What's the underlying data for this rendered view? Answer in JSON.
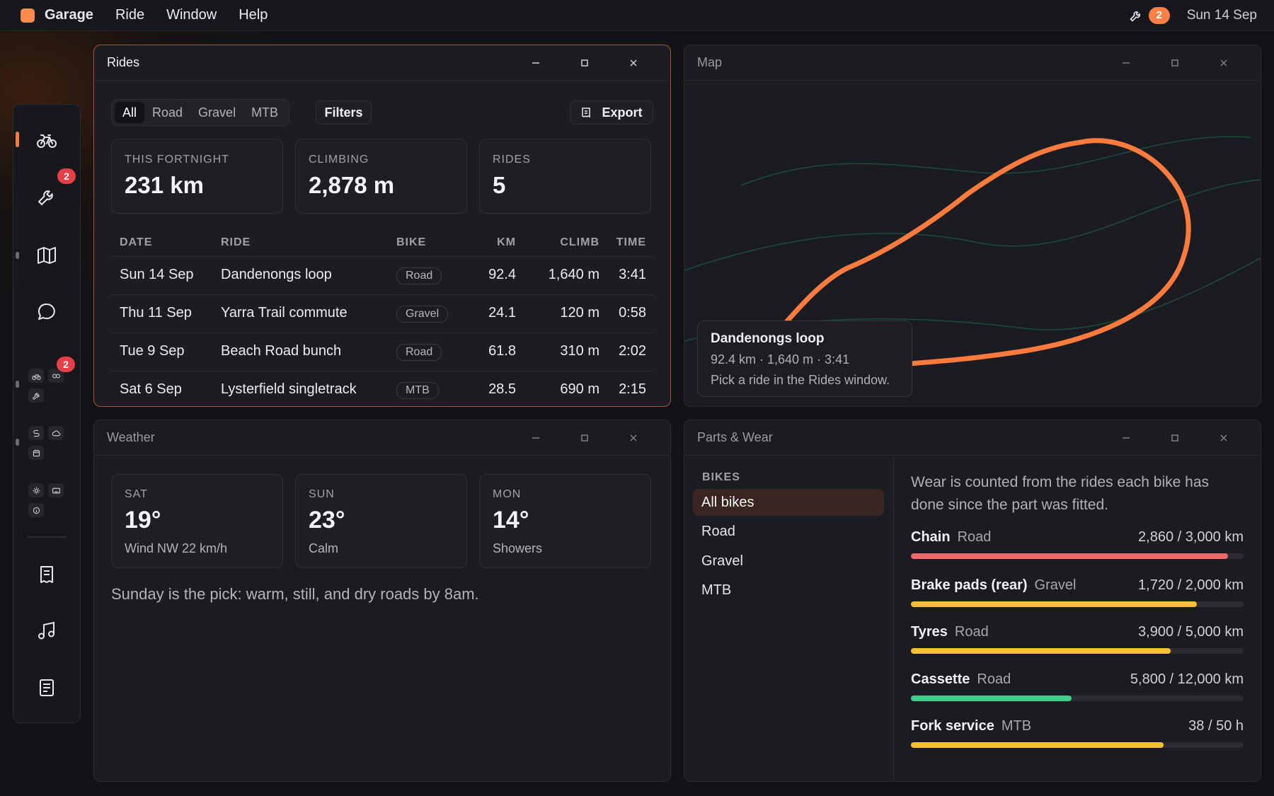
{
  "menubar": {
    "app_name": "Garage",
    "menus": [
      "Ride",
      "Window",
      "Help"
    ],
    "notifications": "2",
    "date": "Sun 14 Sep"
  },
  "dock": {
    "items": [
      {
        "name": "bike-icon",
        "active": true
      },
      {
        "name": "wrench-icon",
        "badge": "2"
      },
      {
        "name": "map-icon"
      },
      {
        "name": "chat-icon"
      },
      {
        "name": "group-bike-wrench",
        "badge": "2"
      },
      {
        "name": "group-route-weather"
      },
      {
        "name": "group-settings"
      },
      {
        "name": "receipt-icon"
      },
      {
        "name": "music-icon"
      },
      {
        "name": "notes-icon"
      }
    ]
  },
  "rides": {
    "title": "Rides",
    "filters": [
      "All",
      "Road",
      "Gravel",
      "MTB"
    ],
    "active_filter": "All",
    "filters_button": "Filters",
    "export_button": "Export",
    "stats": [
      {
        "label": "THIS FORTNIGHT",
        "value": "231 km"
      },
      {
        "label": "CLIMBING",
        "value": "2,878 m"
      },
      {
        "label": "RIDES",
        "value": "5"
      }
    ],
    "columns": [
      "DATE",
      "RIDE",
      "BIKE",
      "KM",
      "CLIMB",
      "TIME"
    ],
    "rows": [
      {
        "date": "Sun 14 Sep",
        "ride": "Dandenongs loop",
        "bike": "Road",
        "km": "92.4",
        "climb": "1,640 m",
        "time": "3:41"
      },
      {
        "date": "Thu 11 Sep",
        "ride": "Yarra Trail commute",
        "bike": "Gravel",
        "km": "24.1",
        "climb": "120 m",
        "time": "0:58"
      },
      {
        "date": "Tue 9 Sep",
        "ride": "Beach Road bunch",
        "bike": "Road",
        "km": "61.8",
        "climb": "310 m",
        "time": "2:02"
      },
      {
        "date": "Sat 6 Sep",
        "ride": "Lysterfield singletrack",
        "bike": "MTB",
        "km": "28.5",
        "climb": "690 m",
        "time": "2:15"
      }
    ]
  },
  "map": {
    "title": "Map",
    "route_color": "#ff7a3d",
    "info_title": "Dandenongs loop",
    "info_stats": "92.4 km · 1,640 m · 3:41",
    "info_hint": "Pick a ride in the Rides window."
  },
  "weather": {
    "title": "Weather",
    "days": [
      {
        "day": "SAT",
        "temp": "19°",
        "cond": "Wind NW 22 km/h"
      },
      {
        "day": "SUN",
        "temp": "23°",
        "cond": "Calm"
      },
      {
        "day": "MON",
        "temp": "14°",
        "cond": "Showers"
      }
    ],
    "note": "Sunday is the pick: warm, still, and dry roads by 8am."
  },
  "parts": {
    "title": "Parts & Wear",
    "bikes_heading": "BIKES",
    "bikes": [
      "All bikes",
      "Road",
      "Gravel",
      "MTB"
    ],
    "active_bike": "All bikes",
    "note": "Wear is counted from the rides each bike has done since the part was fitted.",
    "items": [
      {
        "name": "Chain",
        "bike": "Road",
        "usage": "2,860 / 3,000 km",
        "wear": 0.953,
        "color": "#f0686a"
      },
      {
        "name": "Brake pads (rear)",
        "bike": "Gravel",
        "usage": "1,720 / 2,000 km",
        "wear": 0.86,
        "color": "#f5c133"
      },
      {
        "name": "Tyres",
        "bike": "Road",
        "usage": "3,900 / 5,000 km",
        "wear": 0.78,
        "color": "#f5c133"
      },
      {
        "name": "Cassette",
        "bike": "Road",
        "usage": "5,800 / 12,000 km",
        "wear": 0.483,
        "color": "#3ecf8e"
      },
      {
        "name": "Fork service",
        "bike": "MTB",
        "usage": "38 / 50 h",
        "wear": 0.76,
        "color": "#f5c133"
      }
    ]
  }
}
